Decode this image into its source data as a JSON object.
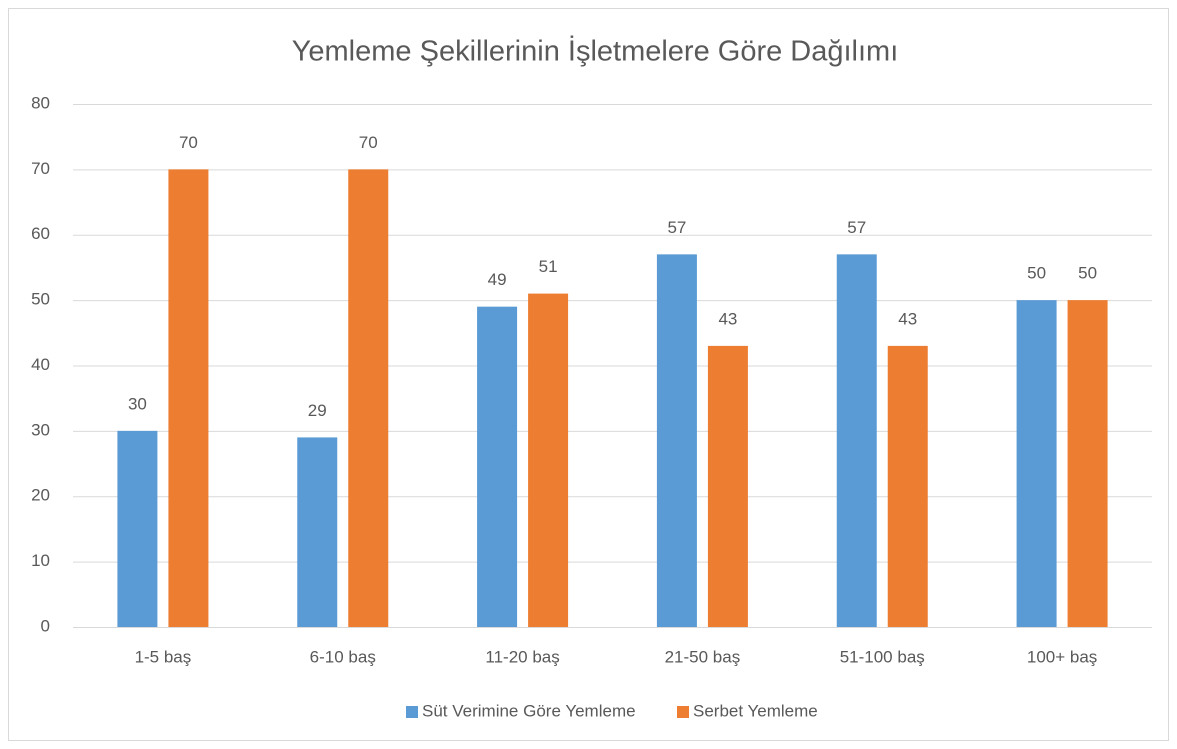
{
  "chart_data": {
    "type": "bar",
    "title": "Yemleme Şekillerinin İşletmelere Göre Dağılımı",
    "categories": [
      "1-5 baş",
      "6-10 baş",
      "11-20 baş",
      "21-50 baş",
      "51-100 baş",
      "100+ baş"
    ],
    "series": [
      {
        "name": "Süt Verimine Göre Yemleme",
        "color": "#5b9bd5",
        "values": [
          30,
          29,
          49,
          57,
          57,
          50
        ]
      },
      {
        "name": "Serbet Yemleme",
        "color": "#ed7d31",
        "values": [
          70,
          70,
          51,
          43,
          43,
          50
        ]
      }
    ],
    "ylim": [
      0,
      80
    ],
    "yticks": [
      0,
      10,
      20,
      30,
      40,
      50,
      60,
      70,
      80
    ],
    "grid": true,
    "legend": "bottom"
  }
}
